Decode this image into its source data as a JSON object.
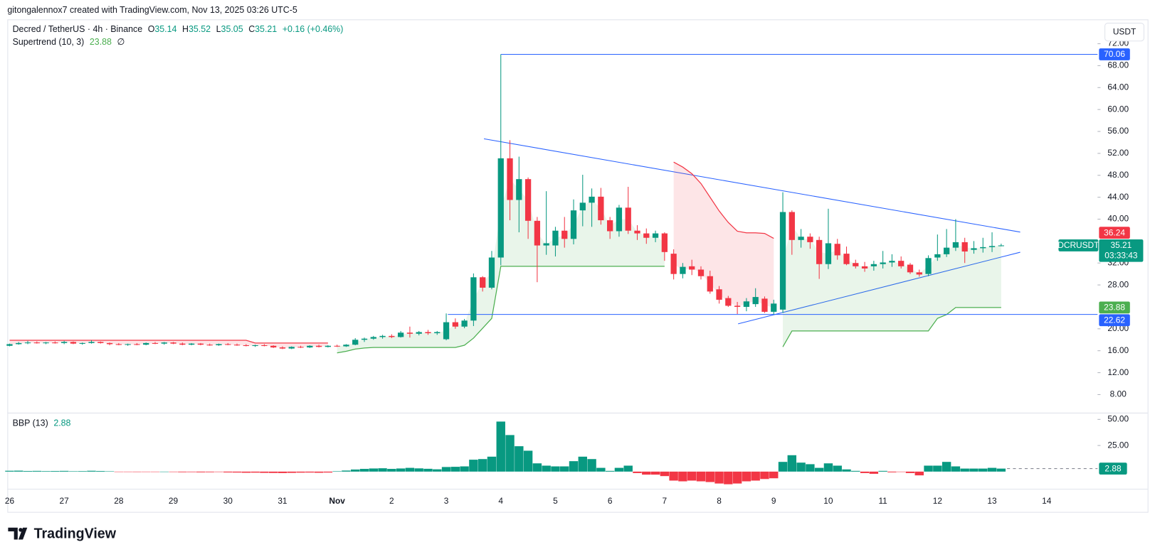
{
  "header": {
    "attribution": "gitongalennox7 created with TradingView.com, Nov 13, 2025 03:26 UTC-5"
  },
  "chart_data": [
    {
      "type": "candlestick",
      "title": "Decred / TetherUS · 4h · Binance",
      "ohlc_keys": [
        "O",
        "H",
        "L",
        "C"
      ],
      "change": "+0.16 (+0.46%)",
      "currency": "USDT",
      "symbol": "DCRUSDT",
      "countdown": "03:33:43",
      "categories": [
        "26",
        null,
        null,
        null,
        null,
        null,
        "27",
        null,
        null,
        null,
        null,
        null,
        "28",
        null,
        null,
        null,
        null,
        null,
        "29",
        null,
        null,
        null,
        null,
        null,
        "30",
        null,
        null,
        null,
        null,
        null,
        "31",
        null,
        null,
        null,
        null,
        null,
        "Nov",
        null,
        null,
        null,
        null,
        null,
        "2",
        null,
        null,
        null,
        null,
        null,
        "3",
        null,
        null,
        null,
        null,
        null,
        "4",
        null,
        null,
        null,
        null,
        null,
        "5",
        null,
        null,
        null,
        null,
        null,
        "6",
        null,
        null,
        null,
        null,
        null,
        "7",
        null,
        null,
        null,
        null,
        null,
        "8",
        null,
        null,
        null,
        null,
        null,
        "9",
        null,
        null,
        null,
        null,
        null,
        "10",
        null,
        null,
        null,
        null,
        null,
        "11",
        null,
        null,
        null,
        null,
        null,
        "12",
        null,
        null,
        null,
        null,
        null,
        "13",
        null,
        null,
        null,
        null,
        null,
        "14"
      ],
      "open": [
        16.9,
        17.2,
        17.4,
        17.5,
        17.4,
        17.5,
        17.4,
        17.6,
        17.3,
        17.4,
        17.6,
        17.4,
        17.2,
        17.1,
        17.2,
        17.1,
        17.4,
        17.3,
        17.5,
        17.3,
        17.1,
        17.3,
        17.1,
        17.0,
        17.2,
        17.1,
        17.0,
        16.9,
        17.0,
        16.9,
        16.6,
        16.4,
        16.7,
        16.6,
        16.9,
        16.7,
        16.9,
        16.8,
        17.1,
        18.0,
        18.2,
        18.5,
        18.7,
        18.5,
        19.3,
        19.1,
        19.4,
        19.2,
        18.1,
        21.2,
        20.4,
        21.5,
        29.4,
        27.5,
        33.0,
        51.1,
        43.5,
        47.3,
        39.7,
        35.2,
        35.2,
        37.9,
        36.4,
        41.6,
        43.0,
        44.1,
        39.8,
        37.8,
        42.1,
        37.9,
        37.4,
        36.6,
        37.4,
        33.7,
        30.0,
        31.4,
        30.8,
        29.6,
        27.2,
        25.6,
        24.2,
        24.0,
        24.5,
        25.5,
        23.1,
        23.5,
        41.3,
        36.2,
        36.8,
        36.2,
        31.8,
        35.5,
        33.7,
        32.0,
        31.4,
        31.4,
        31.8,
        32.1,
        32.4,
        31.7,
        30.3,
        30.0,
        33.0,
        33.6,
        34.8,
        35.8,
        34.4,
        34.7,
        34.9,
        35.14,
        null,
        null,
        null,
        null,
        null
      ],
      "high": [
        17.3,
        17.6,
        17.8,
        17.7,
        17.6,
        17.7,
        17.8,
        17.7,
        17.5,
        17.9,
        17.7,
        17.5,
        17.4,
        17.3,
        17.4,
        17.5,
        17.6,
        17.6,
        17.6,
        17.5,
        17.4,
        17.4,
        17.3,
        17.3,
        17.4,
        17.3,
        17.2,
        17.1,
        17.2,
        17.0,
        16.8,
        16.8,
        16.9,
        17.0,
        17.1,
        17.0,
        17.1,
        17.2,
        18.3,
        18.4,
        18.7,
        18.9,
        19.0,
        19.6,
        20.4,
        19.6,
        19.8,
        19.6,
        22.8,
        21.9,
        21.8,
        30.1,
        29.6,
        34.2,
        70.06,
        54.4,
        51.4,
        47.6,
        40.4,
        45.1,
        38.6,
        40.4,
        43.6,
        48.1,
        45.6,
        45.7,
        40.4,
        42.6,
        45.9,
        38.9,
        38.3,
        37.9,
        37.6,
        34.5,
        32.0,
        32.6,
        31.4,
        30.6,
        27.8,
        26.0,
        24.9,
        25.6,
        27.4,
        25.9,
        25.3,
        44.9,
        41.6,
        38.2,
        37.4,
        36.8,
        41.9,
        36.4,
        35.0,
        32.6,
        32.2,
        32.4,
        34.2,
        33.6,
        33.2,
        32.0,
        30.8,
        33.4,
        37.2,
        38.2,
        40.0,
        36.6,
        36.0,
        36.6,
        37.6,
        35.52,
        null,
        null,
        null,
        null,
        null
      ],
      "low": [
        16.8,
        17.1,
        17.2,
        17.3,
        17.2,
        17.3,
        17.2,
        17.2,
        17.1,
        17.3,
        17.3,
        17.0,
        17.0,
        16.9,
        17.0,
        17.0,
        17.2,
        17.1,
        17.2,
        17.0,
        17.0,
        17.0,
        16.9,
        16.9,
        17.0,
        16.9,
        16.8,
        16.7,
        16.8,
        16.5,
        16.3,
        16.3,
        16.5,
        16.5,
        16.6,
        16.6,
        16.7,
        16.7,
        17.0,
        17.6,
        18.0,
        18.2,
        18.3,
        18.4,
        18.4,
        18.8,
        18.9,
        18.9,
        17.9,
        20.0,
        20.1,
        20.5,
        26.8,
        27.2,
        31.6,
        39.8,
        37.6,
        36.4,
        28.5,
        33.5,
        33.2,
        34.8,
        35.4,
        38.7,
        38.6,
        39.0,
        36.4,
        36.8,
        37.3,
        36.2,
        35.5,
        35.8,
        32.4,
        29.0,
        29.2,
        29.8,
        29.0,
        26.4,
        24.6,
        24.0,
        22.7,
        23.2,
        24.0,
        22.9,
        22.6,
        22.9,
        33.5,
        34.8,
        34.6,
        29.1,
        30.9,
        32.6,
        31.6,
        31.0,
        30.4,
        30.6,
        31.0,
        31.3,
        31.0,
        30.0,
        29.5,
        29.6,
        32.4,
        33.1,
        34.2,
        32.0,
        33.7,
        33.9,
        34.0,
        35.05,
        null,
        null,
        null,
        null,
        null
      ],
      "close": [
        17.2,
        17.4,
        17.5,
        17.4,
        17.5,
        17.4,
        17.6,
        17.3,
        17.4,
        17.6,
        17.4,
        17.2,
        17.1,
        17.2,
        17.1,
        17.4,
        17.3,
        17.5,
        17.3,
        17.1,
        17.3,
        17.1,
        17.0,
        17.2,
        17.1,
        17.0,
        16.9,
        17.0,
        16.9,
        16.6,
        16.4,
        16.7,
        16.6,
        16.9,
        16.7,
        16.9,
        16.8,
        17.1,
        18.0,
        18.2,
        18.5,
        18.7,
        18.5,
        19.3,
        19.1,
        19.4,
        19.2,
        19.4,
        21.2,
        20.4,
        21.5,
        29.4,
        27.5,
        33.0,
        51.1,
        43.5,
        47.3,
        39.7,
        35.2,
        35.6,
        37.9,
        36.4,
        41.6,
        43.0,
        44.1,
        39.8,
        37.8,
        42.1,
        37.9,
        37.4,
        36.6,
        37.4,
        34.0,
        30.0,
        31.3,
        30.8,
        29.6,
        26.8,
        25.3,
        24.2,
        24.0,
        25.0,
        25.8,
        23.1,
        24.6,
        41.3,
        36.2,
        36.8,
        35.8,
        31.8,
        35.6,
        33.4,
        31.8,
        31.4,
        31.0,
        31.8,
        32.1,
        32.4,
        31.4,
        30.3,
        29.9,
        32.9,
        33.6,
        34.8,
        35.8,
        34.1,
        34.7,
        34.9,
        35.1,
        35.21,
        null,
        null,
        null,
        null,
        null
      ],
      "up_color": "#089981",
      "down_color": "#f23645",
      "ylim": [
        4.7,
        76.3
      ],
      "yticks": [
        {
          "value": 72,
          "label": "72.00"
        },
        {
          "value": 68,
          "label": "68.00"
        },
        {
          "value": 64,
          "label": "64.00"
        },
        {
          "value": 60,
          "label": "60.00"
        },
        {
          "value": 56,
          "label": "56.00"
        },
        {
          "value": 52,
          "label": "52.00"
        },
        {
          "value": 48,
          "label": "48.00"
        },
        {
          "value": 44,
          "label": "44.00"
        },
        {
          "value": 40,
          "label": "40.00"
        },
        {
          "value": 32,
          "label": "32.00"
        },
        {
          "value": 28,
          "label": "28.00"
        },
        {
          "value": 20,
          "label": "20.00"
        },
        {
          "value": 16,
          "label": "16.00"
        },
        {
          "value": 12,
          "label": "12.00"
        },
        {
          "value": 8,
          "label": "8.00"
        }
      ],
      "grid": false,
      "supertrend": {
        "name": "Supertrend (10, 3)",
        "symbol": "∅",
        "up_color": "#4caf50",
        "down_color": "#f23645",
        "up_values": [
          null,
          null,
          null,
          null,
          null,
          null,
          null,
          null,
          null,
          null,
          null,
          null,
          null,
          null,
          null,
          null,
          null,
          null,
          null,
          null,
          null,
          null,
          null,
          null,
          null,
          null,
          null,
          null,
          null,
          null,
          null,
          null,
          null,
          null,
          null,
          null,
          15.6,
          15.9,
          16.3,
          16.5,
          16.6,
          16.6,
          16.6,
          16.6,
          16.6,
          16.6,
          16.6,
          16.6,
          16.6,
          16.6,
          17.0,
          18.3,
          20.1,
          21.9,
          31.4,
          31.4,
          31.4,
          31.4,
          31.4,
          31.4,
          31.4,
          31.4,
          31.4,
          31.4,
          31.4,
          31.4,
          31.4,
          31.4,
          31.4,
          31.4,
          31.4,
          31.4,
          31.4,
          null,
          null,
          null,
          null,
          null,
          null,
          null,
          null,
          null,
          null,
          null,
          null,
          16.7,
          19.6,
          19.6,
          19.6,
          19.6,
          19.6,
          19.6,
          19.6,
          19.6,
          19.6,
          19.6,
          19.6,
          19.6,
          19.6,
          19.6,
          19.6,
          19.6,
          21.9,
          22.6,
          23.88,
          23.88,
          23.88,
          23.88,
          23.88,
          23.88,
          null,
          null,
          null,
          null,
          null
        ],
        "down_values": [
          17.9,
          17.9,
          17.9,
          17.9,
          17.9,
          17.9,
          17.9,
          17.9,
          17.9,
          17.9,
          17.9,
          17.9,
          17.9,
          17.9,
          17.9,
          17.9,
          17.9,
          17.9,
          17.9,
          17.9,
          17.9,
          17.9,
          17.9,
          17.9,
          17.9,
          17.9,
          17.9,
          17.4,
          17.4,
          17.4,
          17.4,
          17.4,
          17.4,
          17.4,
          17.4,
          17.4,
          null,
          null,
          null,
          null,
          null,
          null,
          null,
          null,
          null,
          null,
          null,
          null,
          null,
          null,
          null,
          null,
          null,
          null,
          null,
          null,
          null,
          null,
          null,
          null,
          null,
          null,
          null,
          null,
          null,
          null,
          null,
          null,
          null,
          null,
          null,
          null,
          null,
          50.4,
          49.5,
          48.3,
          46.5,
          44.0,
          41.5,
          39.4,
          37.8,
          37.5,
          37.5,
          37.4,
          36.5,
          null,
          null,
          null,
          null,
          null,
          null,
          null,
          null,
          null,
          null,
          null,
          null,
          null,
          null,
          null,
          null,
          null,
          null,
          null,
          null,
          null,
          null,
          null,
          null,
          null,
          null,
          null,
          null,
          null,
          null
        ]
      },
      "horizontal_lines": [
        {
          "value": 70.06,
          "color": "#2962ff"
        },
        {
          "value": 22.62,
          "color": "#2962ff"
        }
      ],
      "price_labels": [
        {
          "value": 36.24,
          "color": "#f23645"
        }
      ]
    },
    {
      "type": "bar",
      "title": "BBP (13)",
      "values": [
        0.8,
        0.9,
        0.6,
        0.7,
        0.5,
        0.6,
        0.7,
        0.4,
        0.5,
        0.8,
        0.6,
        0.3,
        -0.2,
        -0.3,
        -0.4,
        -0.1,
        -0.3,
        0.0,
        -0.4,
        -0.6,
        -0.5,
        -0.7,
        -0.6,
        -0.4,
        -0.8,
        -0.9,
        -1.1,
        -1.0,
        -1.2,
        -1.3,
        -1.4,
        -1.2,
        -1.0,
        -0.9,
        -1.1,
        -0.9,
        0.4,
        1.0,
        2.0,
        2.6,
        3.0,
        3.2,
        2.6,
        3.0,
        3.6,
        3.1,
        2.7,
        2.2,
        4.4,
        4.6,
        5.0,
        11.4,
        12.0,
        14.3,
        47.9,
        35.0,
        24.3,
        20.0,
        7.9,
        5.7,
        5.0,
        5.0,
        10.0,
        14.3,
        12.0,
        3.6,
        0.7,
        3.6,
        5.7,
        -1.4,
        -2.9,
        -2.9,
        -4.3,
        -8.6,
        -9.3,
        -8.6,
        -9.3,
        -10.0,
        -11.4,
        -12.1,
        -11.4,
        -9.3,
        -8.6,
        -7.1,
        -6.4,
        9.3,
        15.7,
        8.6,
        7.1,
        3.6,
        7.9,
        5.7,
        2.1,
        0.7,
        -1.4,
        -2.1,
        0.7,
        -0.7,
        -0.3,
        -1.4,
        -3.6,
        5.7,
        5.7,
        9.3,
        5.0,
        2.9,
        2.9,
        2.9,
        3.6,
        2.88,
        null,
        null,
        null,
        null,
        null
      ],
      "positive_color": "#089981",
      "negative_color": "#f23645",
      "ylim": [
        -13.6,
        55.7
      ],
      "yticks": [
        {
          "value": 50,
          "label": "50.00"
        },
        {
          "value": 25,
          "label": "25.00"
        }
      ]
    }
  ],
  "footer": {
    "brand": "TradingView"
  }
}
